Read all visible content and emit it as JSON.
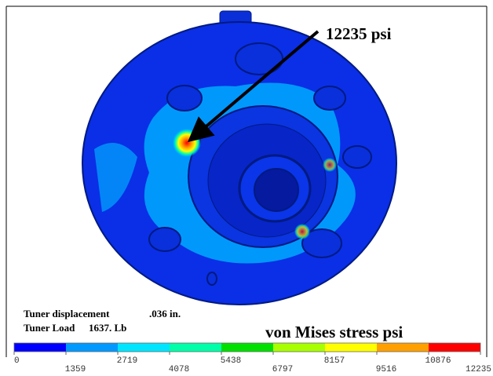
{
  "annotation": "12235 psi",
  "info": {
    "displacement_label": "Tuner displacement",
    "displacement_value": ".036 in.",
    "load_label": "Tuner Load",
    "load_value": "1637. Lb"
  },
  "legend": {
    "title": "von Mises stress psi",
    "colors": [
      "#0000ff",
      "#0099ff",
      "#00e5ff",
      "#00ffa8",
      "#00e000",
      "#a8ff00",
      "#ffff00",
      "#ffa000",
      "#ff0000"
    ],
    "ticks": [
      "0",
      "1359",
      "2719",
      "4078",
      "5438",
      "6797",
      "8157",
      "9516",
      "10876",
      "12235"
    ]
  }
}
